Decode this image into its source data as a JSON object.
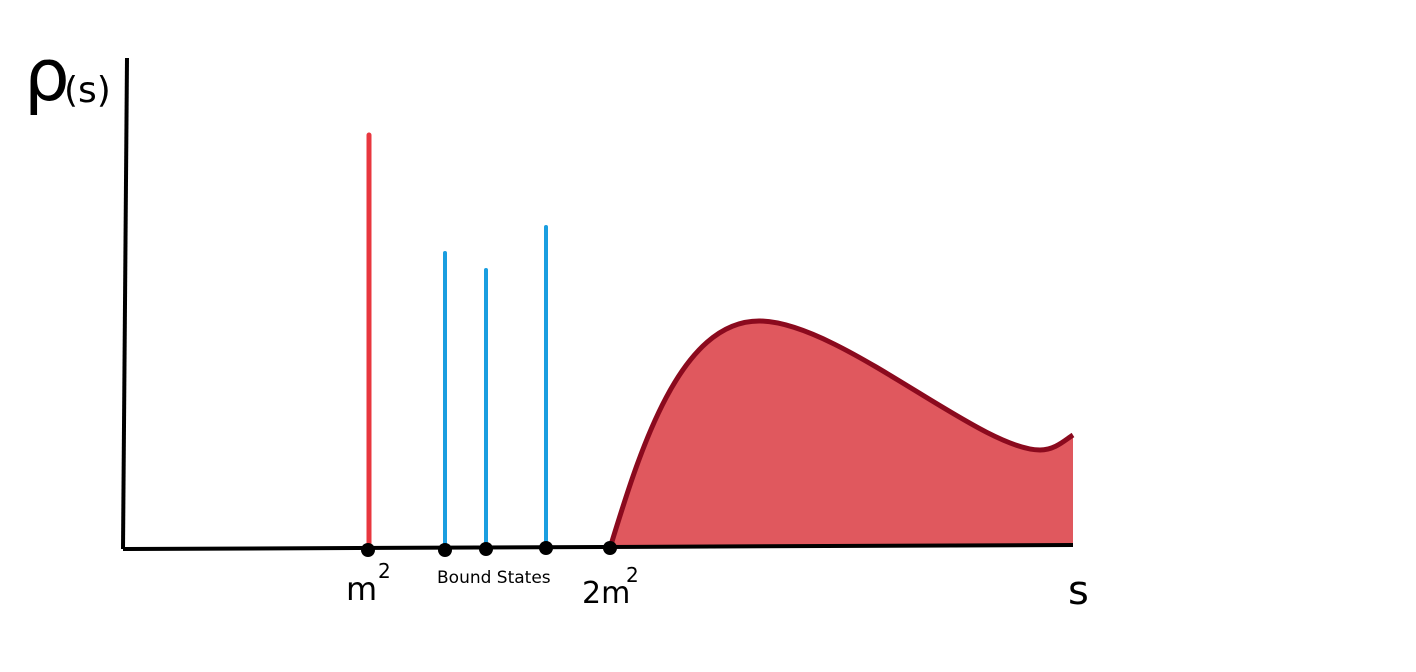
{
  "axes": {
    "y_label": "ρ",
    "y_label_sub": "(s)",
    "x_label": "s"
  },
  "markers": [
    {
      "label": "m",
      "sup": "2"
    },
    {
      "label": "2m",
      "sup": "2"
    }
  ],
  "annotation": "Bound States"
}
